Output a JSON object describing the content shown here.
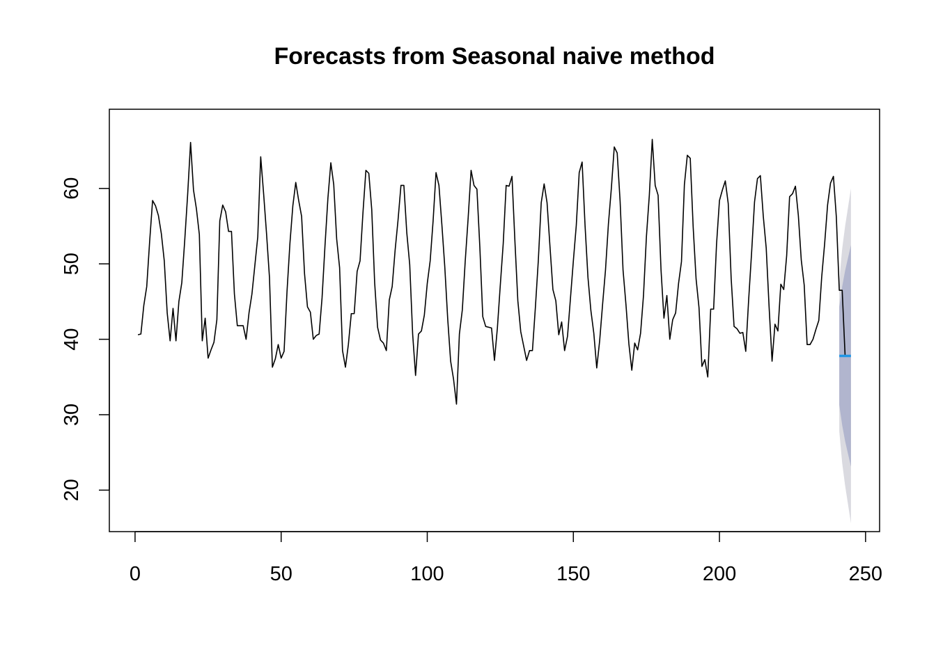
{
  "chart_data": {
    "type": "line",
    "title": "Forecasts from Seasonal naive method",
    "xlabel": "",
    "ylabel": "",
    "xlim": [
      -8.8,
      254.8
    ],
    "ylim": [
      14.5,
      70.5
    ],
    "x_ticks": [
      0,
      50,
      100,
      150,
      200,
      250
    ],
    "y_ticks": [
      20,
      30,
      40,
      50,
      60
    ],
    "grid": false,
    "legend": "none",
    "series": [
      {
        "x_start": 1,
        "values": [
          40.6,
          40.7,
          44.5,
          47,
          53,
          58.4,
          57.7,
          56.4,
          54,
          50.4,
          43.5,
          39.8,
          44.1,
          39.8,
          45,
          47.5,
          53.1,
          59.2,
          66.1,
          59.8,
          57.3,
          53.9,
          39.8,
          42.8,
          37.5,
          38.6,
          39.6,
          42.6,
          55.7,
          57.8,
          56.9,
          54.3,
          54.3,
          46,
          41.8,
          41.8,
          41.8,
          40,
          43.5,
          46,
          49.8,
          53.6,
          64.2,
          59.3,
          54,
          48.2,
          36.3,
          37.4,
          39.3,
          37.5,
          38.4,
          46.3,
          52.7,
          57.7,
          60.8,
          58.4,
          56.3,
          48.7,
          44.3,
          43.6,
          40,
          40.5,
          40.7,
          45.5,
          52.4,
          58.7,
          63.4,
          60.5,
          53.3,
          49.5,
          38.5,
          36.3,
          39.3,
          43.4,
          43.4,
          49,
          50.4,
          56.8,
          62.4,
          62,
          57.2,
          47.5,
          41.6,
          39.9,
          39.5,
          38.5,
          45.2,
          47,
          51.8,
          55.8,
          60.4,
          60.4,
          54.1,
          49.9,
          40.7,
          35.2,
          40.7,
          41.1,
          43.2,
          47.4,
          50.4,
          55.7,
          62.1,
          60.4,
          55.2,
          49.6,
          42.7,
          37.1,
          34.7,
          31.4,
          40.7,
          43.9,
          50.4,
          56.1,
          62.4,
          60.4,
          59.9,
          52.2,
          43,
          41.7,
          41.6,
          41.5,
          37.2,
          41.5,
          47.2,
          52.7,
          60.4,
          60.3,
          61.6,
          53,
          45.1,
          41,
          39.1,
          37.2,
          38.5,
          38.5,
          44.2,
          50.4,
          58.1,
          60.6,
          58.1,
          52.3,
          46.6,
          45.1,
          40.6,
          42.3,
          38.5,
          40.4,
          45.4,
          50.4,
          55.1,
          62.1,
          63.5,
          55.1,
          48.2,
          43.8,
          40.8,
          36.2,
          39.8,
          44.6,
          49.2,
          55.3,
          60,
          65.5,
          64.7,
          58.3,
          49.2,
          44.6,
          39.4,
          35.9,
          39.5,
          38.6,
          40.8,
          45.8,
          53.6,
          59.1,
          66.5,
          60.4,
          59.1,
          49.2,
          42.8,
          45.8,
          40,
          42.6,
          43.5,
          47.4,
          50.3,
          60.5,
          64.4,
          64,
          54.9,
          48,
          44.2,
          36.4,
          37.3,
          35,
          44,
          44,
          52.6,
          58.4,
          59.8,
          61,
          58,
          48.1,
          41.7,
          41.4,
          40.8,
          40.9,
          38.4,
          45.3,
          51.5,
          58.2,
          61.3,
          61.7,
          56.3,
          52.1,
          44.2,
          37.1,
          42,
          41.1,
          47.3,
          46.6,
          51.1,
          58.9,
          59.3,
          60.3,
          56.4,
          50.5,
          47.2,
          39.3,
          39.3,
          40,
          41.3,
          42.5,
          48.3,
          52.7,
          57.8,
          60.7,
          61.6,
          56.2,
          46.5,
          46.5,
          37.8
        ]
      }
    ],
    "forecast": {
      "x": [
        241,
        242,
        243,
        244,
        245
      ],
      "point": [
        37.8,
        37.8,
        37.8,
        37.8,
        37.8
      ],
      "lo80": [
        31.3,
        28.6,
        26.5,
        24.8,
        23.1
      ],
      "hi80": [
        44.3,
        47.0,
        49.1,
        50.8,
        52.5
      ],
      "lo95": [
        27.8,
        23.6,
        20.6,
        18.1,
        15.6
      ],
      "hi95": [
        47.8,
        52.0,
        55.0,
        57.5,
        60.0
      ]
    },
    "colors": {
      "line": "#000000",
      "forecast_point": "#2297E6",
      "band_80": "#B1B5CE",
      "band_95": "#DADAE0"
    }
  }
}
